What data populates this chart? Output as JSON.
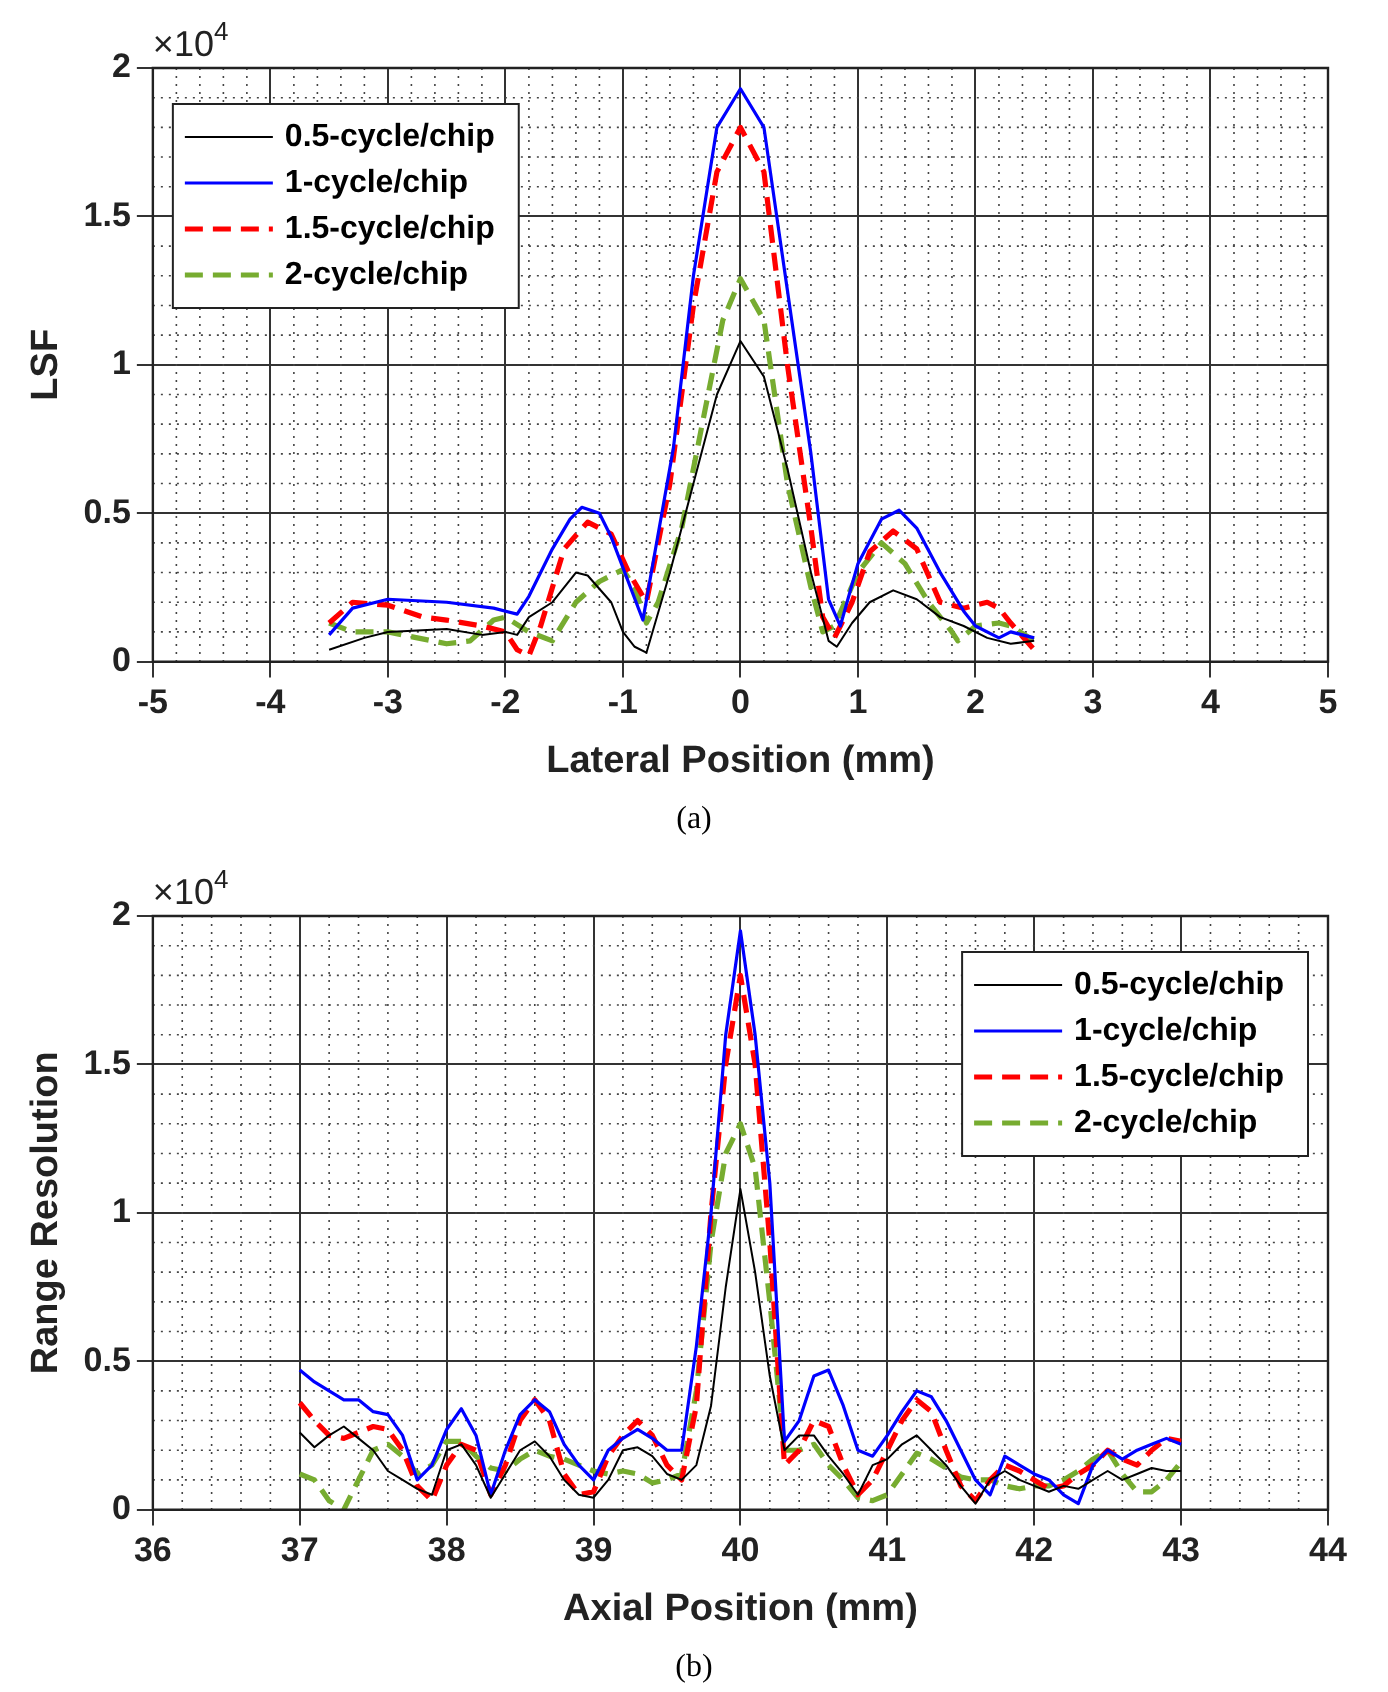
{
  "chart_data": [
    {
      "type": "line",
      "xlabel": "Lateral Position (mm)",
      "ylabel": "LSF",
      "xlim": [
        -5,
        5
      ],
      "xticks": [
        -5,
        -4,
        -3,
        -2,
        -1,
        0,
        1,
        2,
        3,
        4,
        5
      ],
      "ylim": [
        0,
        2
      ],
      "yticks": [
        0,
        0.5,
        1,
        1.5,
        2
      ],
      "grid": true,
      "legend": "top left",
      "marker": "none",
      "annotations": [
        "×10$^{4}$",
        "(a)"
      ],
      "series": [
        {
          "name": "0.5-cycle/chip",
          "color": "#000000",
          "line_style": "solid",
          "x": [
            -3.5,
            -3.2,
            -3.0,
            -2.5,
            -2.2,
            -2.0,
            -1.9,
            -1.8,
            -1.6,
            -1.4,
            -1.3,
            -1.1,
            -1.0,
            -0.9,
            -0.8,
            -0.6,
            -0.4,
            -0.2,
            0,
            0.2,
            0.4,
            0.6,
            0.75,
            0.82,
            0.95,
            1.1,
            1.3,
            1.5,
            1.7,
            1.9,
            2.1,
            2.3,
            2.5
          ],
          "values": [
            0.04,
            0.08,
            0.1,
            0.11,
            0.09,
            0.1,
            0.09,
            0.15,
            0.2,
            0.3,
            0.29,
            0.2,
            0.1,
            0.05,
            0.03,
            0.3,
            0.6,
            0.9,
            1.08,
            0.96,
            0.65,
            0.3,
            0.07,
            0.05,
            0.13,
            0.2,
            0.24,
            0.21,
            0.15,
            0.12,
            0.08,
            0.06,
            0.07
          ]
        },
        {
          "name": "1-cycle/chip",
          "color": "#0000ff",
          "line_style": "solid",
          "x": [
            -3.5,
            -3.3,
            -3.0,
            -2.5,
            -2.1,
            -1.9,
            -1.8,
            -1.6,
            -1.45,
            -1.35,
            -1.2,
            -1.1,
            -0.83,
            -0.57,
            -0.4,
            -0.2,
            0,
            0.2,
            0.4,
            0.6,
            0.75,
            0.85,
            1.0,
            1.2,
            1.35,
            1.5,
            1.7,
            1.9,
            2.0,
            2.2,
            2.3,
            2.5
          ],
          "values": [
            0.09,
            0.18,
            0.21,
            0.2,
            0.18,
            0.16,
            0.22,
            0.38,
            0.48,
            0.52,
            0.5,
            0.42,
            0.14,
            0.72,
            1.3,
            1.8,
            1.93,
            1.8,
            1.25,
            0.7,
            0.21,
            0.12,
            0.33,
            0.48,
            0.51,
            0.45,
            0.3,
            0.17,
            0.12,
            0.08,
            0.1,
            0.08
          ]
        },
        {
          "name": "1.5-cycle/chip",
          "color": "#ff0000",
          "line_style": "dashed",
          "x": [
            -3.5,
            -3.3,
            -3.0,
            -2.7,
            -2.5,
            -2.2,
            -2.0,
            -1.9,
            -1.8,
            -1.7,
            -1.5,
            -1.3,
            -1.1,
            -0.95,
            -0.8,
            -0.6,
            -0.4,
            -0.2,
            0,
            0.2,
            0.4,
            0.6,
            0.7,
            0.8,
            0.95,
            1.1,
            1.3,
            1.5,
            1.7,
            1.9,
            2.1,
            2.2,
            2.3,
            2.5
          ],
          "values": [
            0.13,
            0.2,
            0.19,
            0.15,
            0.14,
            0.12,
            0.1,
            0.04,
            0.02,
            0.12,
            0.38,
            0.47,
            0.43,
            0.3,
            0.2,
            0.6,
            1.2,
            1.65,
            1.8,
            1.65,
            1.0,
            0.45,
            0.15,
            0.08,
            0.2,
            0.37,
            0.44,
            0.38,
            0.2,
            0.18,
            0.2,
            0.18,
            0.13,
            0.04
          ]
        },
        {
          "name": "2-cycle/chip",
          "color": "#77ac30",
          "line_style": "dashed",
          "x": [
            -3.5,
            -3.3,
            -3.0,
            -2.5,
            -2.3,
            -2.1,
            -2.0,
            -1.8,
            -1.6,
            -1.4,
            -1.2,
            -1.0,
            -0.9,
            -0.8,
            -0.7,
            -0.5,
            -0.3,
            -0.15,
            0,
            0.2,
            0.4,
            0.6,
            0.7,
            0.8,
            1.0,
            1.2,
            1.4,
            1.6,
            1.8,
            1.85,
            2.0,
            2.2,
            2.3,
            2.5
          ],
          "values": [
            0.13,
            0.1,
            0.1,
            0.06,
            0.07,
            0.14,
            0.15,
            0.1,
            0.07,
            0.2,
            0.27,
            0.31,
            0.25,
            0.13,
            0.2,
            0.45,
            0.85,
            1.15,
            1.29,
            1.15,
            0.6,
            0.25,
            0.1,
            0.12,
            0.3,
            0.4,
            0.33,
            0.2,
            0.1,
            0.07,
            0.12,
            0.13,
            0.12,
            0.07
          ]
        }
      ]
    },
    {
      "type": "line",
      "xlabel": "Axial Position (mm)",
      "ylabel": "Range Resolution",
      "xlim": [
        36,
        44
      ],
      "xticks": [
        36,
        37,
        38,
        39,
        40,
        41,
        42,
        43,
        44
      ],
      "ylim": [
        0,
        2
      ],
      "yticks": [
        0,
        0.5,
        1,
        1.5,
        2
      ],
      "grid": true,
      "legend": "top right",
      "marker": "none",
      "annotations": [
        "×10$^{4}$",
        "(b)"
      ],
      "x": [
        37.0,
        37.1,
        37.2,
        37.3,
        37.4,
        37.5,
        37.6,
        37.7,
        37.8,
        37.9,
        38.0,
        38.1,
        38.2,
        38.3,
        38.4,
        38.5,
        38.6,
        38.7,
        38.8,
        38.9,
        39.0,
        39.1,
        39.2,
        39.3,
        39.4,
        39.5,
        39.6,
        39.7,
        39.8,
        39.9,
        40.0,
        40.1,
        40.2,
        40.3,
        40.4,
        40.5,
        40.6,
        40.7,
        40.8,
        40.9,
        41.0,
        41.1,
        41.2,
        41.3,
        41.4,
        41.5,
        41.6,
        41.7,
        41.8,
        41.9,
        42.0,
        42.1,
        42.2,
        42.3,
        42.4,
        42.5,
        42.6,
        42.7,
        42.8,
        42.9,
        43.0
      ],
      "series": [
        {
          "name": "0.5-cycle/chip",
          "color": "#000000",
          "line_style": "solid",
          "values": [
            0.26,
            0.21,
            0.25,
            0.28,
            0.24,
            0.2,
            0.13,
            0.1,
            0.07,
            0.05,
            0.2,
            0.22,
            0.15,
            0.04,
            0.12,
            0.2,
            0.23,
            0.18,
            0.1,
            0.05,
            0.04,
            0.1,
            0.2,
            0.21,
            0.18,
            0.12,
            0.1,
            0.15,
            0.35,
            0.75,
            1.08,
            0.8,
            0.45,
            0.2,
            0.25,
            0.25,
            0.18,
            0.12,
            0.05,
            0.15,
            0.17,
            0.22,
            0.25,
            0.2,
            0.15,
            0.08,
            0.02,
            0.1,
            0.13,
            0.1,
            0.08,
            0.06,
            0.08,
            0.07,
            0.1,
            0.13,
            0.1,
            0.12,
            0.14,
            0.13,
            0.13
          ]
        },
        {
          "name": "1-cycle/chip",
          "color": "#0000ff",
          "line_style": "solid",
          "values": [
            0.47,
            0.43,
            0.4,
            0.37,
            0.37,
            0.33,
            0.32,
            0.25,
            0.1,
            0.15,
            0.27,
            0.34,
            0.25,
            0.05,
            0.2,
            0.32,
            0.37,
            0.33,
            0.22,
            0.15,
            0.1,
            0.2,
            0.24,
            0.27,
            0.24,
            0.2,
            0.2,
            0.55,
            1.0,
            1.6,
            1.95,
            1.6,
            1.1,
            0.23,
            0.3,
            0.45,
            0.47,
            0.35,
            0.2,
            0.18,
            0.25,
            0.33,
            0.4,
            0.38,
            0.3,
            0.2,
            0.1,
            0.05,
            0.18,
            0.15,
            0.12,
            0.1,
            0.05,
            0.02,
            0.15,
            0.2,
            0.17,
            0.2,
            0.22,
            0.24,
            0.22
          ]
        },
        {
          "name": "1.5-cycle/chip",
          "color": "#ff0000",
          "line_style": "dashed",
          "values": [
            0.36,
            0.3,
            0.25,
            0.24,
            0.26,
            0.28,
            0.27,
            0.2,
            0.08,
            0.03,
            0.15,
            0.22,
            0.2,
            0.05,
            0.15,
            0.3,
            0.37,
            0.3,
            0.12,
            0.05,
            0.06,
            0.18,
            0.25,
            0.3,
            0.25,
            0.15,
            0.1,
            0.35,
            1.0,
            1.5,
            1.8,
            1.5,
            0.9,
            0.15,
            0.2,
            0.3,
            0.28,
            0.15,
            0.05,
            0.1,
            0.2,
            0.3,
            0.37,
            0.33,
            0.2,
            0.08,
            0.03,
            0.1,
            0.15,
            0.13,
            0.1,
            0.07,
            0.08,
            0.12,
            0.15,
            0.2,
            0.17,
            0.15,
            0.2,
            0.24,
            0.23
          ]
        },
        {
          "name": "2-cycle/chip",
          "color": "#77ac30",
          "line_style": "dashed",
          "values": [
            0.12,
            0.1,
            0.03,
            0,
            0.1,
            0.2,
            0.22,
            0.18,
            0.12,
            0.15,
            0.23,
            0.23,
            0.18,
            0.14,
            0.13,
            0.17,
            0.2,
            0.18,
            0.17,
            0.15,
            0.13,
            0.12,
            0.13,
            0.12,
            0.09,
            0.1,
            0.12,
            0.4,
            0.9,
            1.2,
            1.3,
            1.15,
            0.7,
            0.2,
            0.2,
            0.22,
            0.15,
            0.1,
            0.04,
            0.03,
            0.05,
            0.12,
            0.19,
            0.17,
            0.14,
            0.11,
            0.1,
            0.1,
            0.08,
            0.07,
            0.08,
            0.08,
            0.1,
            0.13,
            0.17,
            0.2,
            0.12,
            0.06,
            0.06,
            0.1,
            0.16
          ]
        }
      ]
    }
  ]
}
